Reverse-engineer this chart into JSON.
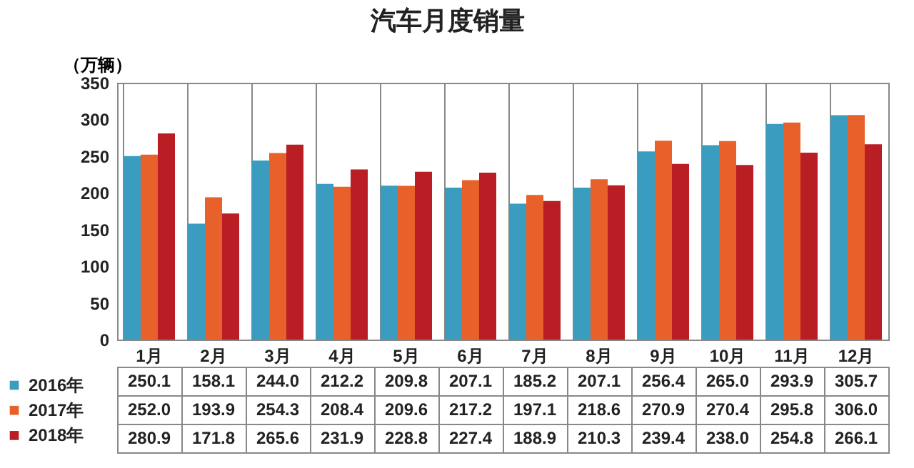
{
  "chart_data": {
    "type": "bar",
    "title": "汽车月度销量",
    "ylabel": "（万辆）",
    "categories": [
      "1月",
      "2月",
      "3月",
      "4月",
      "5月",
      "6月",
      "7月",
      "8月",
      "9月",
      "10月",
      "11月",
      "12月"
    ],
    "series": [
      {
        "name": "2016年",
        "color": "#3a9dc0",
        "values": [
          250.1,
          158.1,
          244.0,
          212.2,
          209.8,
          207.1,
          185.2,
          207.1,
          256.4,
          265.0,
          293.9,
          305.7
        ],
        "value_labels": [
          "250.1",
          "158.1",
          "244.0",
          "212.2",
          "209.8",
          "207.1",
          "185.2",
          "207.1",
          "256.4",
          "265.0",
          "293.9",
          "305.7"
        ]
      },
      {
        "name": "2017年",
        "color": "#e8602a",
        "values": [
          252.0,
          193.9,
          254.3,
          208.4,
          209.6,
          217.2,
          197.1,
          218.6,
          270.9,
          270.4,
          295.8,
          306.0
        ],
        "value_labels": [
          "252.0",
          "193.9",
          "254.3",
          "208.4",
          "209.6",
          "217.2",
          "197.1",
          "218.6",
          "270.9",
          "270.4",
          "295.8",
          "306.0"
        ]
      },
      {
        "name": "2018年",
        "color": "#b81e24",
        "values": [
          280.9,
          171.8,
          265.6,
          231.9,
          228.8,
          227.4,
          188.9,
          210.3,
          239.4,
          238.0,
          254.8,
          266.1
        ],
        "value_labels": [
          "280.9",
          "171.8",
          "265.6",
          "231.9",
          "228.8",
          "227.4",
          "188.9",
          "210.3",
          "239.4",
          "238.0",
          "254.8",
          "266.1"
        ]
      }
    ],
    "ylim": [
      0,
      350
    ],
    "yticks": [
      0,
      50,
      100,
      150,
      200,
      250,
      300,
      350
    ],
    "grid": false,
    "legend": "bottom left"
  }
}
